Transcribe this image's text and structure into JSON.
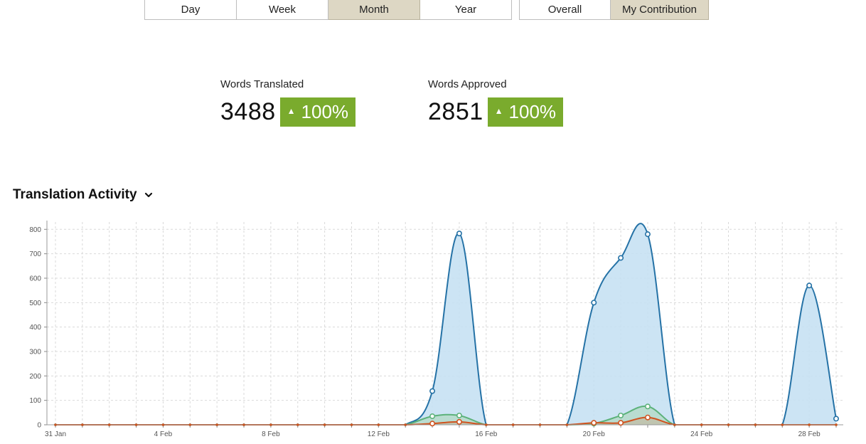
{
  "filters": {
    "range": [
      {
        "label": "Day",
        "active": false
      },
      {
        "label": "Week",
        "active": false
      },
      {
        "label": "Month",
        "active": true
      },
      {
        "label": "Year",
        "active": false
      }
    ],
    "scope": [
      {
        "label": "Overall",
        "active": false
      },
      {
        "label": "My Contribution",
        "active": true
      }
    ]
  },
  "stats": {
    "translated": {
      "label": "Words Translated",
      "value": "3488",
      "change": "100%"
    },
    "approved": {
      "label": "Words Approved",
      "value": "2851",
      "change": "100%"
    }
  },
  "chart_section": {
    "title": "Translation Activity",
    "toggle_icon": "chevron-down-icon"
  },
  "colors": {
    "badge": "#7aab2d",
    "active_button": "#ddd7c4",
    "series_blue": "#2572a6",
    "series_blue_fill": "#c3dff2",
    "series_green": "#5cb27a",
    "series_orange": "#d0531f"
  },
  "chart_data": {
    "type": "area",
    "title": "",
    "xlabel": "",
    "ylabel": "",
    "ylim": [
      0,
      830
    ],
    "yticks": [
      0,
      100,
      200,
      300,
      400,
      500,
      600,
      700,
      800
    ],
    "grid": true,
    "x_labels": [
      "31 Jan",
      "4 Feb",
      "8 Feb",
      "12 Feb",
      "16 Feb",
      "20 Feb",
      "24 Feb",
      "28 Feb"
    ],
    "x_label_days": [
      0,
      4,
      8,
      12,
      16,
      20,
      24,
      28
    ],
    "days": [
      0,
      1,
      2,
      3,
      4,
      5,
      6,
      7,
      8,
      9,
      10,
      11,
      12,
      13,
      14,
      15,
      16,
      17,
      18,
      19,
      20,
      21,
      22,
      23,
      24,
      25,
      26,
      27,
      28,
      29
    ],
    "series": [
      {
        "values": [
          0,
          0,
          0,
          0,
          0,
          0,
          0,
          0,
          0,
          0,
          0,
          0,
          0,
          0,
          138,
          783,
          0,
          0,
          0,
          0,
          500,
          683,
          780,
          0,
          0,
          0,
          0,
          0,
          570,
          25
        ]
      },
      {
        "values": [
          0,
          0,
          0,
          0,
          0,
          0,
          0,
          0,
          0,
          0,
          0,
          0,
          0,
          0,
          35,
          38,
          0,
          0,
          0,
          0,
          5,
          38,
          75,
          0,
          0,
          0,
          0,
          0,
          0,
          0
        ]
      },
      {
        "values": [
          0,
          0,
          0,
          0,
          0,
          0,
          0,
          0,
          0,
          0,
          0,
          0,
          0,
          0,
          5,
          12,
          0,
          0,
          0,
          0,
          8,
          8,
          30,
          0,
          0,
          0,
          0,
          0,
          0,
          0
        ]
      }
    ]
  }
}
